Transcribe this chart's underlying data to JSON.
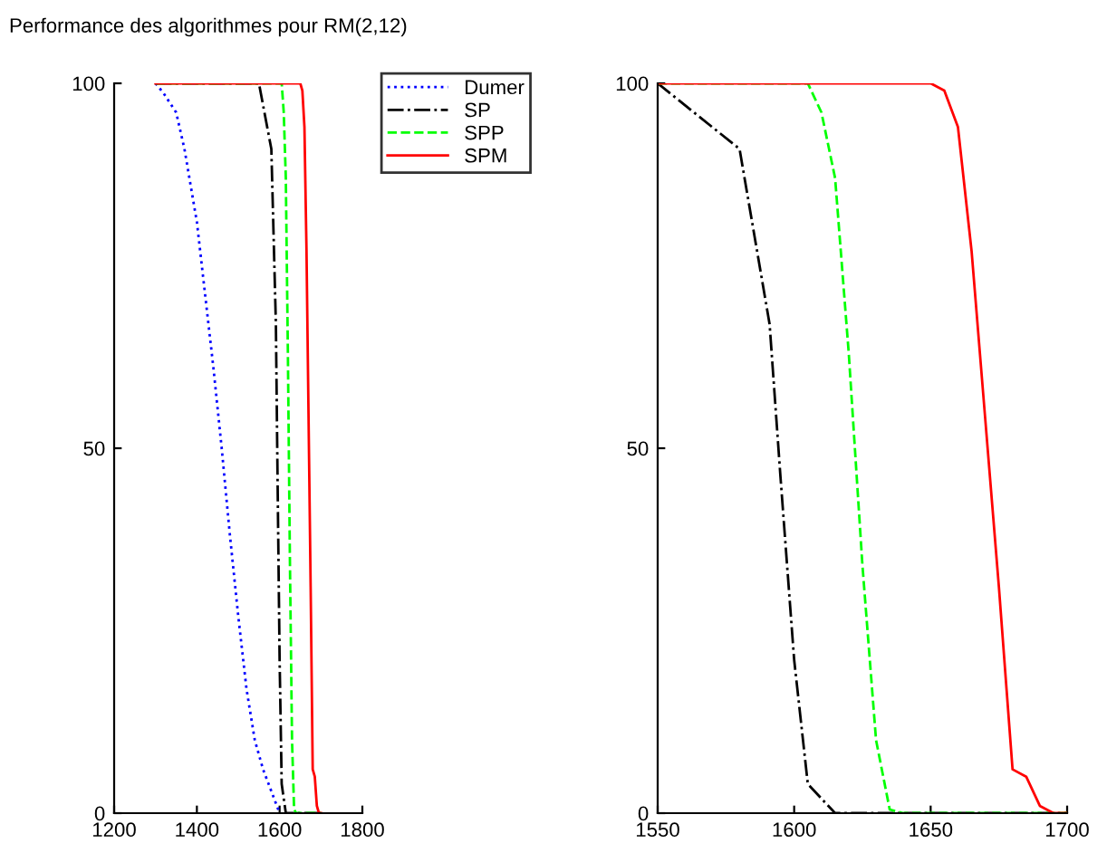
{
  "chart_data": [
    {
      "type": "line",
      "title": "Performance des algorithmes pour RM(2,12)",
      "xlim": [
        1200,
        1800
      ],
      "xticks": [
        1200,
        1400,
        1600,
        1800
      ],
      "ylim": [
        0,
        100
      ],
      "yticks": [
        0,
        50,
        100
      ],
      "legend": "right",
      "grid": false,
      "series": [
        {
          "name": "Dumer",
          "color": "#0000ff",
          "line_style": "dotted",
          "x": [
            1300,
            1320,
            1350,
            1370,
            1400,
            1420,
            1440,
            1460,
            1480,
            1500,
            1520,
            1540,
            1560,
            1580,
            1600
          ],
          "values": [
            100,
            98.6,
            96,
            91,
            81,
            71,
            61,
            50,
            38,
            27,
            17,
            10,
            6,
            3,
            0
          ]
        },
        {
          "name": "SP",
          "color": "#000000",
          "line_style": "dashdot",
          "x": [
            1300,
            1550,
            1580,
            1591,
            1595,
            1600,
            1605,
            1615,
            1700
          ],
          "values": [
            100,
            100,
            91,
            67,
            46,
            21,
            4,
            0,
            0
          ]
        },
        {
          "name": "SPP",
          "color": "#00ff00",
          "line_style": "dashed",
          "x": [
            1300,
            1605,
            1610,
            1615,
            1620,
            1625,
            1630,
            1635,
            1640,
            1700
          ],
          "values": [
            100,
            100,
            96,
            87,
            63,
            34,
            10,
            0.5,
            0,
            0
          ]
        },
        {
          "name": "SPM",
          "color": "#ff0000",
          "line_style": "solid",
          "x": [
            1300,
            1650,
            1655,
            1660,
            1665,
            1670,
            1675,
            1680,
            1685,
            1690,
            1695,
            1700
          ],
          "values": [
            100,
            100,
            99,
            94,
            77,
            54,
            31,
            6,
            5,
            1,
            0,
            0
          ]
        }
      ]
    },
    {
      "type": "line",
      "xlim": [
        1550,
        1700
      ],
      "xticks": [
        1550,
        1600,
        1650,
        1700
      ],
      "ylim": [
        0,
        100
      ],
      "yticks": [
        0,
        50,
        100
      ],
      "grid": false,
      "series": [
        {
          "color": "#000000",
          "line_style": "dashdot",
          "x": [
            1550,
            1580,
            1591,
            1595,
            1600,
            1605,
            1615,
            1700
          ],
          "values": [
            100,
            91,
            67,
            46,
            21,
            4,
            0,
            0
          ]
        },
        {
          "color": "#00ff00",
          "line_style": "dashed",
          "x": [
            1550,
            1605,
            1610,
            1615,
            1620,
            1625,
            1630,
            1635,
            1640,
            1700
          ],
          "values": [
            100,
            100,
            96,
            87,
            63,
            34,
            10,
            0.5,
            0,
            0
          ]
        },
        {
          "color": "#ff0000",
          "line_style": "solid",
          "x": [
            1550,
            1650,
            1655,
            1660,
            1665,
            1670,
            1675,
            1680,
            1685,
            1690,
            1695,
            1700
          ],
          "values": [
            100,
            100,
            99,
            94,
            77,
            54,
            31,
            6,
            5,
            1,
            0,
            0
          ]
        }
      ]
    }
  ]
}
